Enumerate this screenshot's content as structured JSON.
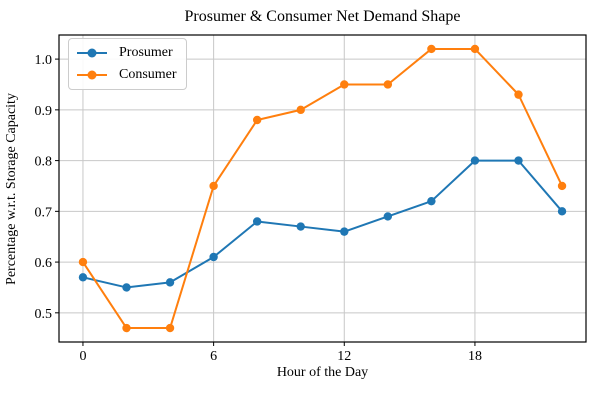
{
  "chart_data": {
    "type": "line",
    "title": "Prosumer & Consumer Net Demand Shape",
    "xlabel": "Hour of the Day",
    "ylabel": "Percentage w.r.t. Storage Capacity",
    "x": [
      0,
      2,
      4,
      6,
      8,
      10,
      12,
      14,
      16,
      18,
      20,
      22
    ],
    "series": [
      {
        "name": "Prosumer",
        "color": "#1f77b4",
        "values": [
          0.57,
          0.55,
          0.56,
          0.61,
          0.68,
          0.67,
          0.66,
          0.69,
          0.72,
          0.8,
          0.8,
          0.7
        ]
      },
      {
        "name": "Consumer",
        "color": "#ff7f0e",
        "values": [
          0.6,
          0.47,
          0.47,
          0.75,
          0.88,
          0.9,
          0.95,
          0.95,
          1.02,
          1.02,
          0.93,
          0.75
        ]
      }
    ],
    "xticks": [
      0,
      6,
      12,
      18
    ],
    "yticks": [
      0.5,
      0.6,
      0.7,
      0.8,
      0.9,
      1.0
    ],
    "xlim": [
      -1.1,
      23.1
    ],
    "ylim": [
      0.4425,
      1.0475
    ],
    "grid": true,
    "legend_position": "upper left"
  },
  "colors": {
    "grid": "#c8c8c8",
    "spine": "#000000",
    "background": "#ffffff"
  }
}
